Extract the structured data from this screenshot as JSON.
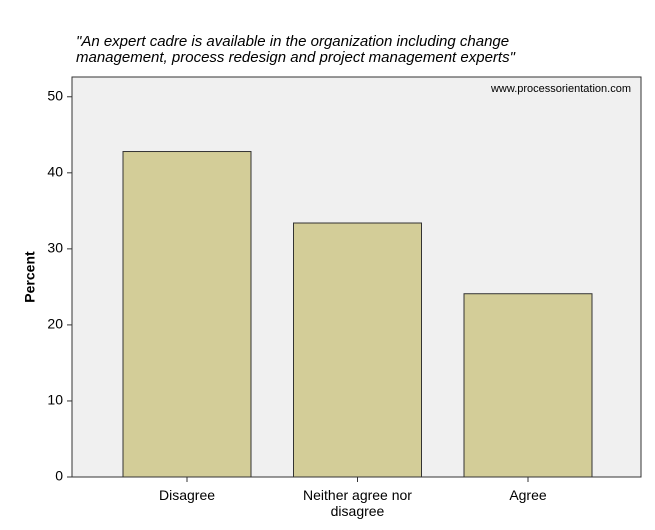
{
  "chart_data": {
    "type": "bar",
    "title": "\"An expert cadre is available in the organization including change\nmanagement, process redesign and project management experts\"",
    "annotation": "www.processorientation.com",
    "y_label": "Percent",
    "categories": [
      "Disagree",
      "Neither agree nor disagree",
      "Agree"
    ],
    "values": [
      42.8,
      33.4,
      24.1
    ],
    "color": "#d3cd98",
    "ylim": [
      0,
      52.6
    ],
    "yticks": [
      0,
      10,
      20,
      30,
      40,
      50
    ],
    "grid": false
  }
}
